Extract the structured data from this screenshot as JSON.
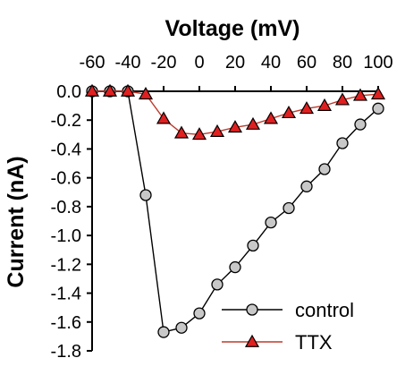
{
  "chart_data": {
    "type": "line",
    "xlabel": "Voltage (mV)",
    "ylabel": "Current (nA)",
    "xlim": [
      -60,
      100
    ],
    "ylim": [
      -1.8,
      0.0
    ],
    "x_ticks": [
      -60,
      -40,
      -20,
      0,
      20,
      40,
      60,
      80,
      100
    ],
    "x_tick_labels": [
      "-60",
      "-40",
      "-20",
      "0",
      "20",
      "40",
      "60",
      "80",
      "100"
    ],
    "y_ticks": [
      0.0,
      -0.2,
      -0.4,
      -0.6,
      -0.8,
      -1.0,
      -1.2,
      -1.4,
      -1.6,
      -1.8
    ],
    "y_tick_labels": [
      "0.0",
      "-0.2",
      "-0.4",
      "-0.6",
      "-0.8",
      "-1.0",
      "-1.2",
      "-1.4",
      "-1.6",
      "-1.8"
    ],
    "x_axis_position": "top",
    "grid": false,
    "legend_position": "bottom-right",
    "series": [
      {
        "name": "control",
        "marker": "circle",
        "line_color": "#000000",
        "marker_fill": "#c8c8c8",
        "marker_stroke": "#000000",
        "x": [
          -60,
          -50,
          -40,
          -30,
          -20,
          -10,
          0,
          10,
          20,
          30,
          40,
          50,
          60,
          70,
          80,
          90,
          100
        ],
        "y": [
          0.0,
          0.0,
          0.0,
          -0.72,
          -1.67,
          -1.64,
          -1.54,
          -1.34,
          -1.22,
          -1.07,
          -0.91,
          -0.81,
          -0.66,
          -0.54,
          -0.36,
          -0.23,
          -0.12
        ]
      },
      {
        "name": "TTX",
        "marker": "triangle",
        "line_color": "#c0392b",
        "marker_fill": "#e02020",
        "marker_stroke": "#000000",
        "x": [
          -60,
          -50,
          -40,
          -30,
          -20,
          -10,
          0,
          10,
          20,
          30,
          40,
          50,
          60,
          70,
          80,
          90,
          100
        ],
        "y": [
          0.0,
          0.0,
          0.0,
          -0.02,
          -0.19,
          -0.29,
          -0.3,
          -0.28,
          -0.25,
          -0.23,
          -0.19,
          -0.15,
          -0.12,
          -0.1,
          -0.06,
          -0.03,
          -0.02
        ]
      }
    ]
  }
}
